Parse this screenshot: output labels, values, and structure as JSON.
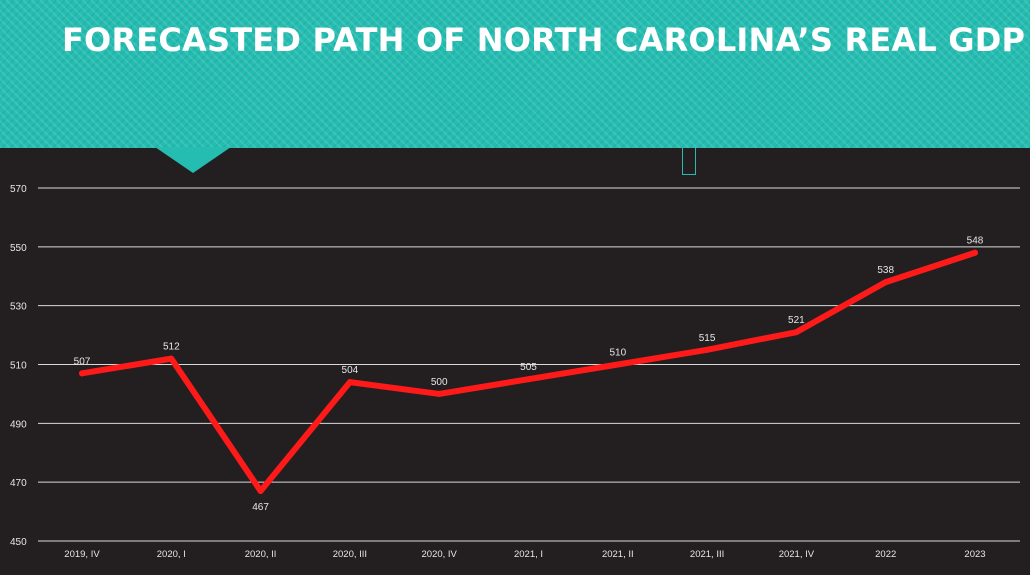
{
  "slide": {
    "title": "FORECASTED PATH OF NORTH CAROLINA’S REAL GDP",
    "banner_color": "#25bdb1",
    "background_color": "#231f20"
  },
  "chart_data": {
    "type": "line",
    "title": "",
    "xlabel": "",
    "ylabel": "",
    "categories": [
      "2019, IV",
      "2020, I",
      "2020, II",
      "2020, III",
      "2020, IV",
      "2021, I",
      "2021, II",
      "2021, III",
      "2021, IV",
      "2022",
      "2023"
    ],
    "series": [
      {
        "values": [
          507,
          512,
          467,
          504,
          500,
          505,
          510,
          515,
          521,
          538,
          548
        ],
        "color": "#ff1a1a"
      }
    ],
    "data_labels": [
      "507",
      "512",
      "467",
      "504",
      "500",
      "505",
      "510",
      "515",
      "521",
      "538",
      "548"
    ],
    "ylim": [
      450,
      570
    ],
    "yticks": [
      450,
      470,
      490,
      510,
      530,
      550,
      570
    ],
    "ytick_labels": [
      "450",
      "470",
      "490",
      "510",
      "530",
      "550",
      "570"
    ],
    "grid": true,
    "legend": "none",
    "gridline_color": "#d9d9d9",
    "text_color": "#e6e6e6"
  }
}
